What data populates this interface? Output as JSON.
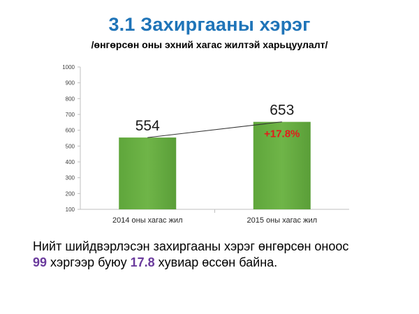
{
  "slide": {
    "title": "3.1 Захиргааны хэрэг",
    "subtitle": "/өнгөрсөн оны эхний хагас жилтэй харьцуулалт/"
  },
  "chart_data": {
    "type": "bar",
    "categories": [
      "2014 оны хагас жил",
      "2015 оны хагас жил"
    ],
    "values": [
      554,
      653
    ],
    "value_labels": [
      "554",
      "653"
    ],
    "ylim": [
      100,
      1000
    ],
    "yticks": [
      "100",
      "200",
      "300",
      "400",
      "500",
      "600",
      "700",
      "800",
      "900",
      "1000"
    ],
    "grid": false,
    "trend_line": true,
    "annotation": "+17.8%",
    "colors": {
      "bar": "#6fb548",
      "annotation": "#e31b1b",
      "axis": "#bfbfbf"
    }
  },
  "summary": {
    "line1": "Нийт шийдвэрлэсэн захиргааны хэрэг өнгөрсөн оноос",
    "count": "99",
    "mid": " хэргээр буюу ",
    "percent": "17.8",
    "end": " хувиар өссөн байна."
  }
}
